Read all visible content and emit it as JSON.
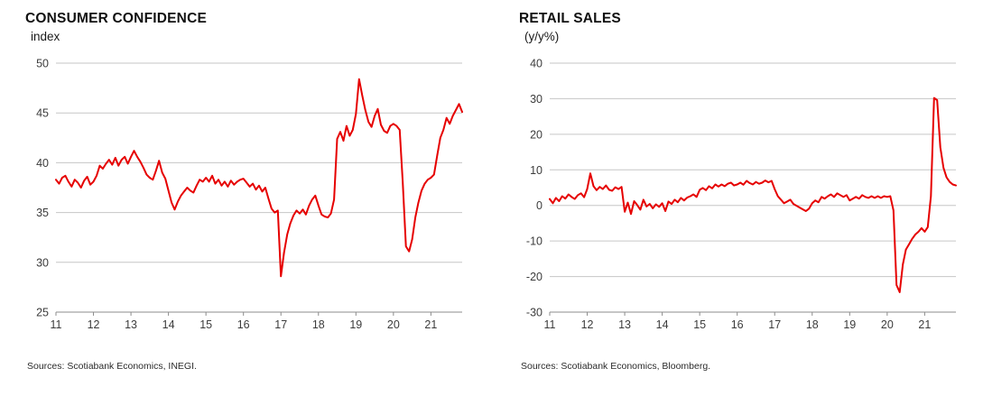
{
  "colors": {
    "line_red": "#e60000",
    "grid": "#c6c6c6",
    "axis": "#8c8c8c",
    "text": "#3c3c3c"
  },
  "chart_data": [
    {
      "type": "line",
      "title": "CONSUMER CONFIDENCE",
      "ylabel": "index",
      "source": "Sources: Scotiabank Economics, INEGI.",
      "x_unit": "monthly",
      "x_start": "2011-01",
      "x_end": "2021-11",
      "xticks": [
        "11",
        "12",
        "13",
        "14",
        "15",
        "16",
        "17",
        "18",
        "19",
        "20",
        "21"
      ],
      "ylim": [
        25,
        50
      ],
      "yticks": [
        50,
        45,
        40,
        35,
        30,
        25
      ],
      "legend": "none",
      "grid": "horizontal",
      "line_color": "#e60000",
      "values": [
        38.3,
        37.9,
        38.5,
        38.7,
        38.1,
        37.6,
        38.3,
        38.0,
        37.5,
        38.2,
        38.6,
        37.8,
        38.1,
        38.7,
        39.7,
        39.4,
        39.9,
        40.3,
        39.8,
        40.5,
        39.7,
        40.3,
        40.6,
        39.9,
        40.6,
        41.2,
        40.6,
        40.1,
        39.5,
        38.8,
        38.5,
        38.3,
        39.2,
        40.2,
        39.0,
        38.4,
        37.2,
        36.0,
        35.3,
        36.1,
        36.7,
        37.1,
        37.5,
        37.2,
        37.0,
        37.7,
        38.3,
        38.1,
        38.5,
        38.1,
        38.7,
        37.9,
        38.3,
        37.7,
        38.1,
        37.6,
        38.2,
        37.8,
        38.1,
        38.3,
        38.4,
        38.0,
        37.6,
        37.9,
        37.3,
        37.7,
        37.1,
        37.5,
        36.4,
        35.4,
        35.0,
        35.2,
        28.6,
        31.0,
        32.8,
        33.9,
        34.7,
        35.2,
        34.9,
        35.3,
        34.8,
        35.7,
        36.3,
        36.7,
        35.7,
        34.8,
        34.6,
        34.5,
        34.9,
        36.3,
        42.4,
        43.1,
        42.2,
        43.7,
        42.7,
        43.3,
        44.9,
        48.4,
        46.8,
        45.3,
        44.1,
        43.6,
        44.7,
        45.4,
        43.8,
        43.2,
        43.0,
        43.7,
        43.9,
        43.7,
        43.3,
        38.0,
        31.6,
        31.1,
        32.3,
        34.5,
        36.0,
        37.2,
        37.9,
        38.3,
        38.5,
        38.8,
        40.7,
        42.5,
        43.3,
        44.5,
        43.9,
        44.7,
        45.3,
        45.9,
        45.1
      ]
    },
    {
      "type": "line",
      "title": "RETAIL SALES",
      "ylabel": "(y/y%)",
      "source": "Sources: Scotiabank Economics, Bloomberg.",
      "x_unit": "monthly",
      "x_start": "2011-01",
      "x_end": "2021-11",
      "xticks": [
        "11",
        "12",
        "13",
        "14",
        "15",
        "16",
        "17",
        "18",
        "19",
        "20",
        "21"
      ],
      "ylim": [
        -30,
        40
      ],
      "yticks": [
        40,
        30,
        20,
        10,
        0,
        -10,
        -20,
        -30
      ],
      "legend": "none",
      "grid": "horizontal",
      "line_color": "#e60000",
      "values": [
        1.8,
        0.6,
        2.1,
        1.2,
        2.6,
        1.9,
        3.1,
        2.4,
        1.8,
        2.9,
        3.4,
        2.3,
        4.6,
        9.0,
        5.4,
        4.3,
        5.2,
        4.6,
        5.6,
        4.4,
        4.1,
        5.1,
        4.6,
        5.2,
        -1.8,
        0.8,
        -2.4,
        1.2,
        0.1,
        -1.2,
        1.6,
        -0.3,
        0.4,
        -0.8,
        0.3,
        -0.4,
        0.6,
        -1.6,
        1.1,
        0.4,
        1.6,
        0.9,
        2.1,
        1.4,
        2.2,
        2.6,
        3.1,
        2.4,
        4.4,
        4.9,
        4.3,
        5.4,
        4.8,
        5.9,
        5.3,
        5.9,
        5.4,
        6.1,
        6.4,
        5.6,
        5.9,
        6.4,
        5.8,
        6.9,
        6.3,
        5.9,
        6.6,
        6.1,
        6.4,
        7.0,
        6.5,
        6.9,
        4.6,
        2.6,
        1.6,
        0.6,
        1.1,
        1.6,
        0.4,
        -0.1,
        -0.6,
        -1.1,
        -1.6,
        -0.9,
        0.6,
        1.4,
        0.9,
        2.4,
        1.9,
        2.6,
        3.1,
        2.4,
        3.4,
        2.9,
        2.4,
        2.9,
        1.4,
        1.9,
        2.4,
        1.9,
        2.9,
        2.4,
        2.1,
        2.6,
        2.1,
        2.6,
        2.1,
        2.6,
        2.4,
        2.6,
        -1.4,
        -22.4,
        -24.4,
        -16.6,
        -12.4,
        -10.9,
        -9.4,
        -8.2,
        -7.4,
        -6.4,
        -7.4,
        -6.1,
        2.6,
        30.2,
        29.6,
        16.4,
        10.6,
        7.9,
        6.6,
        5.9,
        5.6
      ]
    }
  ]
}
